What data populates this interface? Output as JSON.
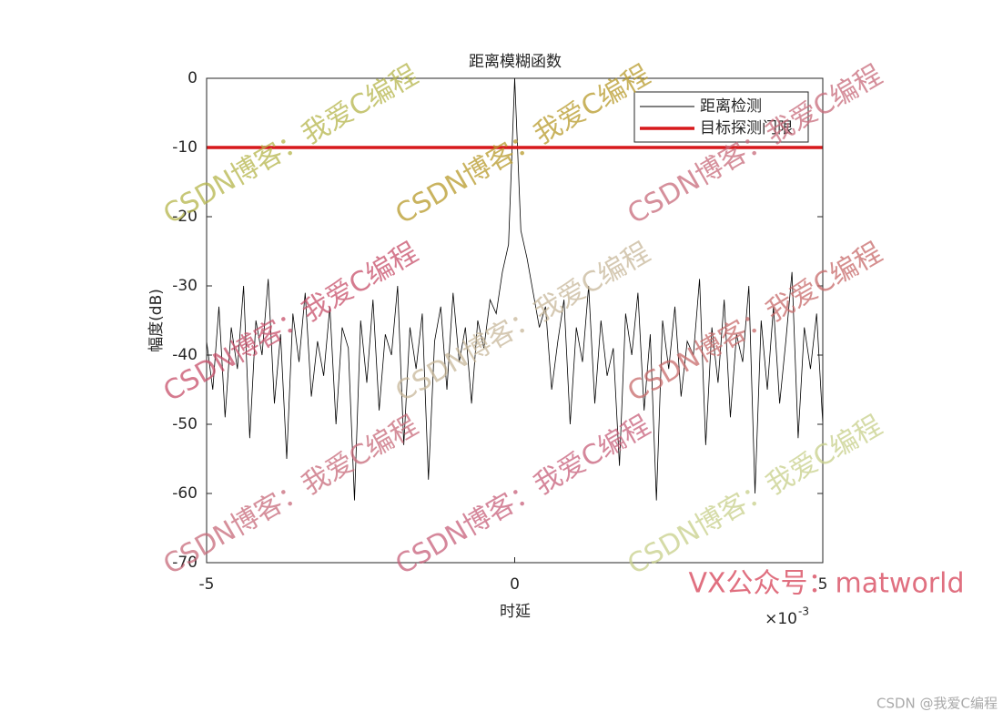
{
  "chart_data": {
    "type": "line",
    "title": "距离模糊函数",
    "x_label": "时延",
    "y_label": "幅度(dB)",
    "x_multiplier": "×10",
    "x_exponent": "-3",
    "x": [
      -5,
      -4.9,
      -4.8,
      -4.7,
      -4.6,
      -4.5,
      -4.4,
      -4.3,
      -4.2,
      -4.1,
      -4,
      -3.9,
      -3.8,
      -3.7,
      -3.6,
      -3.5,
      -3.4,
      -3.3,
      -3.2,
      -3.1,
      -3,
      -2.9,
      -2.8,
      -2.7,
      -2.6,
      -2.5,
      -2.4,
      -2.3,
      -2.2,
      -2.1,
      -2,
      -1.9,
      -1.8,
      -1.7,
      -1.6,
      -1.5,
      -1.4,
      -1.3,
      -1.2,
      -1.1,
      -1,
      -0.9,
      -0.8,
      -0.7,
      -0.6,
      -0.5,
      -0.4,
      -0.3,
      -0.2,
      -0.1,
      0,
      0.1,
      0.2,
      0.3,
      0.4,
      0.5,
      0.6,
      0.7,
      0.8,
      0.9,
      1,
      1.1,
      1.2,
      1.3,
      1.4,
      1.5,
      1.6,
      1.7,
      1.8,
      1.9,
      2,
      2.1,
      2.2,
      2.3,
      2.4,
      2.5,
      2.6,
      2.7,
      2.8,
      2.9,
      3,
      3.1,
      3.2,
      3.3,
      3.4,
      3.5,
      3.6,
      3.7,
      3.8,
      3.9,
      4,
      4.1,
      4.2,
      4.3,
      4.4,
      4.5,
      4.6,
      4.7,
      4.8,
      4.9,
      5
    ],
    "series": [
      {
        "name": "距离检测",
        "color": "#000000",
        "values": [
          -38,
          -45,
          -33,
          -49,
          -36,
          -42,
          -30,
          -52,
          -35,
          -40,
          -29,
          -47,
          -37,
          -55,
          -34,
          -41,
          -31,
          -46,
          -38,
          -43,
          -33,
          -50,
          -36,
          -39,
          -61,
          -35,
          -44,
          -32,
          -48,
          -37,
          -40,
          -30,
          -53,
          -36,
          -42,
          -34,
          -58,
          -38,
          -33,
          -45,
          -31,
          -41,
          -36,
          -47,
          -35,
          -39,
          -32,
          -34,
          -28,
          -24,
          0,
          -22,
          -26,
          -31,
          -36,
          -33,
          -45,
          -38,
          -32,
          -50,
          -36,
          -41,
          -30,
          -47,
          -35,
          -43,
          -39,
          -56,
          -34,
          -40,
          -31,
          -48,
          -37,
          -61,
          -35,
          -42,
          -33,
          -46,
          -38,
          -40,
          -29,
          -53,
          -36,
          -44,
          -32,
          -49,
          -37,
          -41,
          -30,
          -60,
          -35,
          -45,
          -33,
          -47,
          -38,
          -28,
          -52,
          -36,
          -42,
          -34,
          -50
        ]
      }
    ],
    "threshold": {
      "name": "目标探测门限",
      "color": "#d7191c",
      "value": -10
    },
    "xlim": [
      -5,
      5
    ],
    "xticks": [
      -5,
      0,
      5
    ],
    "ylim": [
      -70,
      0
    ],
    "yticks": [
      -70,
      -60,
      -50,
      -40,
      -30,
      -20,
      -10,
      0
    ],
    "legend": "upper-right",
    "watermarks": [
      {
        "text": "CSDN博客：我爱C编程",
        "color": "#b5b54a"
      },
      {
        "text": "CSDN博客：我爱C编程",
        "color": "#b89a2a"
      },
      {
        "text": "CSDN博客：我爱C编程",
        "color": "#c86a7a"
      },
      {
        "text": "CSDN博客：我爱C编程",
        "color": "#c8506a"
      },
      {
        "text": "CSDN博客：我爱C编程",
        "color": "#c8b89a"
      },
      {
        "text": "CSDN博客：我爱C编程",
        "color": "#c86a6a"
      },
      {
        "text": "CSDN博客：我爱C编程",
        "color": "#c86a7a"
      },
      {
        "text": "CSDN博客：我爱C编程",
        "color": "#c8607a"
      },
      {
        "text": "CSDN博客：我爱C编程",
        "color": "#c8d08a"
      }
    ],
    "contact": "VX公众号：matworld",
    "credit": "CSDN @我爱C编程"
  }
}
